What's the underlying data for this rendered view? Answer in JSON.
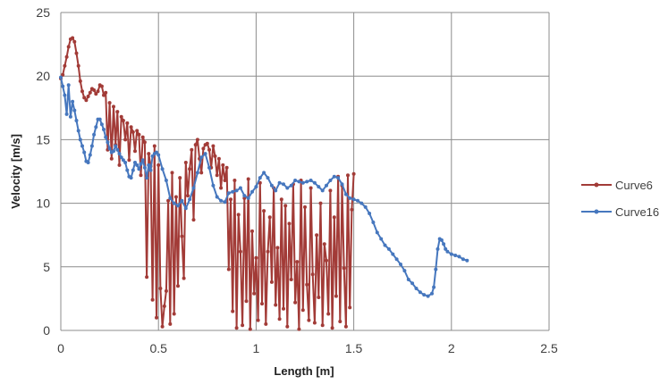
{
  "chart_data": {
    "type": "line",
    "xlabel": "Length [m]",
    "ylabel": "Velocity [m/s]",
    "xlim": [
      0,
      2.5
    ],
    "ylim": [
      0,
      25
    ],
    "x_ticks": [
      "0",
      "0.5",
      "1",
      "1.5",
      "2",
      "2.5"
    ],
    "y_ticks": [
      "0",
      "5",
      "10",
      "15",
      "20",
      "25"
    ],
    "grid": true,
    "legend_position": "right",
    "series": [
      {
        "name": "Curve6",
        "color": "#A23B37",
        "x": [
          0.0,
          0.01,
          0.02,
          0.03,
          0.04,
          0.05,
          0.06,
          0.07,
          0.08,
          0.09,
          0.1,
          0.11,
          0.12,
          0.13,
          0.14,
          0.15,
          0.16,
          0.17,
          0.18,
          0.19,
          0.2,
          0.21,
          0.22,
          0.23,
          0.24,
          0.25,
          0.26,
          0.27,
          0.28,
          0.29,
          0.3,
          0.31,
          0.32,
          0.33,
          0.34,
          0.35,
          0.36,
          0.37,
          0.38,
          0.39,
          0.4,
          0.41,
          0.42,
          0.43,
          0.44,
          0.45,
          0.46,
          0.47,
          0.48,
          0.49,
          0.5,
          0.51,
          0.52,
          0.53,
          0.54,
          0.55,
          0.56,
          0.57,
          0.58,
          0.59,
          0.6,
          0.61,
          0.62,
          0.63,
          0.64,
          0.65,
          0.66,
          0.67,
          0.68,
          0.69,
          0.7,
          0.71,
          0.72,
          0.73,
          0.74,
          0.75,
          0.76,
          0.77,
          0.78,
          0.79,
          0.8,
          0.81,
          0.82,
          0.83,
          0.84,
          0.85,
          0.86,
          0.87,
          0.88,
          0.89,
          0.9,
          0.91,
          0.92,
          0.93,
          0.94,
          0.95,
          0.96,
          0.97,
          0.98,
          0.99,
          1.0,
          1.01,
          1.02,
          1.03,
          1.04,
          1.05,
          1.06,
          1.07,
          1.08,
          1.09,
          1.1,
          1.11,
          1.12,
          1.13,
          1.14,
          1.15,
          1.16,
          1.17,
          1.18,
          1.19,
          1.2,
          1.21,
          1.22,
          1.23,
          1.24,
          1.25,
          1.26,
          1.27,
          1.28,
          1.29,
          1.3,
          1.31,
          1.32,
          1.33,
          1.34,
          1.35,
          1.36,
          1.37,
          1.38,
          1.39,
          1.4,
          1.41,
          1.42,
          1.43,
          1.44,
          1.45,
          1.46,
          1.47,
          1.48,
          1.49,
          1.5
        ],
        "y": [
          19.8,
          20.1,
          20.8,
          21.5,
          22.3,
          22.9,
          23.0,
          22.7,
          21.8,
          20.8,
          19.6,
          18.8,
          18.3,
          18.1,
          18.4,
          18.7,
          19.0,
          18.9,
          18.6,
          18.8,
          19.3,
          19.2,
          18.5,
          18.7,
          14.2,
          17.9,
          13.5,
          17.6,
          14.6,
          17.2,
          13.0,
          16.8,
          16.5,
          15.0,
          16.3,
          13.4,
          16.0,
          15.6,
          14.1,
          15.7,
          15.4,
          12.2,
          15.2,
          14.8,
          4.2,
          13.9,
          12.9,
          2.4,
          14.5,
          1.0,
          13.0,
          3.3,
          0.3,
          1.9,
          3.1,
          10.2,
          0.5,
          12.4,
          1.3,
          10.5,
          3.5,
          12.0,
          7.4,
          4.1,
          13.2,
          10.6,
          12.7,
          14.2,
          8.7,
          14.6,
          15.0,
          13.5,
          12.4,
          14.3,
          14.6,
          14.7,
          14.2,
          12.8,
          14.5,
          13.7,
          12.2,
          13.5,
          11.2,
          13.0,
          11.8,
          12.8,
          4.8,
          10.3,
          1.5,
          11.8,
          0.2,
          9.1,
          6.2,
          0.4,
          10.4,
          2.3,
          11.9,
          0.1,
          7.8,
          2.9,
          5.7,
          0.8,
          11.6,
          2.1,
          9.4,
          0.5,
          6.2,
          8.9,
          3.8,
          11.2,
          2.0,
          6.5,
          0.9,
          10.3,
          1.7,
          9.8,
          0.3,
          8.4,
          4.0,
          11.5,
          2.2,
          5.4,
          0.1,
          11.8,
          1.6,
          9.7,
          3.6,
          0.8,
          11.2,
          4.4,
          0.6,
          7.5,
          2.6,
          10.0,
          0.4,
          6.8,
          5.5,
          1.3,
          11.0,
          0.2,
          8.9,
          2.7,
          12.1,
          0.7,
          11.4,
          4.9,
          0.3,
          12.2,
          1.8,
          9.5,
          12.3
        ]
      },
      {
        "name": "Curve16",
        "color": "#4677BE",
        "x": [
          0.0,
          0.01,
          0.02,
          0.03,
          0.04,
          0.05,
          0.06,
          0.07,
          0.08,
          0.09,
          0.1,
          0.11,
          0.12,
          0.13,
          0.14,
          0.15,
          0.16,
          0.17,
          0.18,
          0.19,
          0.2,
          0.21,
          0.22,
          0.23,
          0.24,
          0.25,
          0.26,
          0.27,
          0.28,
          0.29,
          0.3,
          0.31,
          0.32,
          0.33,
          0.34,
          0.35,
          0.36,
          0.37,
          0.38,
          0.39,
          0.4,
          0.41,
          0.42,
          0.43,
          0.44,
          0.45,
          0.46,
          0.47,
          0.48,
          0.49,
          0.5,
          0.52,
          0.54,
          0.56,
          0.58,
          0.6,
          0.62,
          0.64,
          0.66,
          0.68,
          0.7,
          0.72,
          0.74,
          0.76,
          0.78,
          0.8,
          0.82,
          0.84,
          0.86,
          0.88,
          0.9,
          0.92,
          0.94,
          0.96,
          0.98,
          1.0,
          1.02,
          1.04,
          1.06,
          1.08,
          1.1,
          1.12,
          1.14,
          1.16,
          1.18,
          1.2,
          1.22,
          1.24,
          1.26,
          1.28,
          1.3,
          1.32,
          1.34,
          1.36,
          1.38,
          1.4,
          1.42,
          1.44,
          1.46,
          1.48,
          1.5,
          1.52,
          1.54,
          1.56,
          1.58,
          1.6,
          1.62,
          1.64,
          1.66,
          1.68,
          1.7,
          1.72,
          1.74,
          1.76,
          1.78,
          1.8,
          1.82,
          1.84,
          1.86,
          1.88,
          1.9,
          1.91,
          1.92,
          1.93,
          1.94,
          1.95,
          1.96,
          1.97,
          1.98,
          2.0,
          2.02,
          2.04,
          2.06,
          2.08
        ],
        "y": [
          19.9,
          19.2,
          18.5,
          17.0,
          19.3,
          16.8,
          18.0,
          17.3,
          16.5,
          15.7,
          15.0,
          14.5,
          14.0,
          13.3,
          13.2,
          13.8,
          14.5,
          15.4,
          16.0,
          16.6,
          16.6,
          16.2,
          15.8,
          15.2,
          14.8,
          14.3,
          14.0,
          14.1,
          14.5,
          14.2,
          13.9,
          13.6,
          13.4,
          13.2,
          12.6,
          12.1,
          12.0,
          12.6,
          13.2,
          13.0,
          12.7,
          13.1,
          13.4,
          12.8,
          12.0,
          13.0,
          12.6,
          13.7,
          13.9,
          14.0,
          13.8,
          12.7,
          11.8,
          10.4,
          10.0,
          9.8,
          10.2,
          9.6,
          10.3,
          11.2,
          12.4,
          13.6,
          13.9,
          12.8,
          11.4,
          10.5,
          10.2,
          10.1,
          10.8,
          10.9,
          11.0,
          11.2,
          10.6,
          10.4,
          10.9,
          11.3,
          12.0,
          12.4,
          12.0,
          11.4,
          11.0,
          11.6,
          11.5,
          11.2,
          11.4,
          11.8,
          11.7,
          11.6,
          11.7,
          11.8,
          11.6,
          11.3,
          11.0,
          11.4,
          11.8,
          12.1,
          12.0,
          11.5,
          10.7,
          10.4,
          10.3,
          10.2,
          10.0,
          9.7,
          9.2,
          8.5,
          7.7,
          7.2,
          6.7,
          6.4,
          6.0,
          5.6,
          5.2,
          4.7,
          4.0,
          3.7,
          3.3,
          3.0,
          2.8,
          2.7,
          2.9,
          3.4,
          4.8,
          6.4,
          7.2,
          7.1,
          6.8,
          6.4,
          6.2,
          6.0,
          5.9,
          5.8,
          5.6,
          5.5
        ]
      }
    ]
  }
}
